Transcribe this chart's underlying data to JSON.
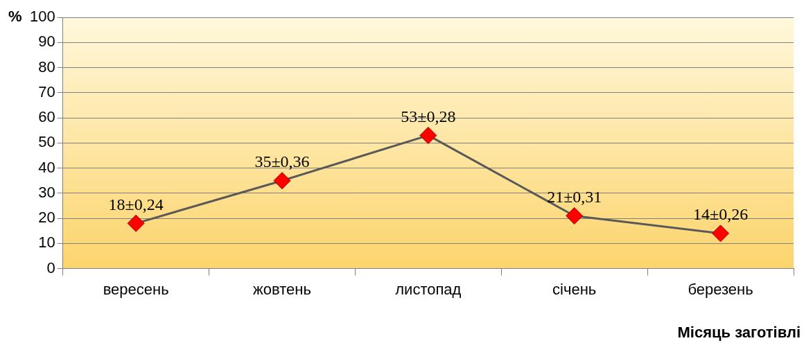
{
  "chart_data": {
    "type": "line",
    "xlabel": "Місяць заготівлі",
    "ylabel": "%",
    "categories": [
      "вересень",
      "жовтень",
      "листопад",
      "січень",
      "березень"
    ],
    "values": [
      18,
      35,
      53,
      21,
      14
    ],
    "value_labels": [
      "18±0,24",
      "35±0,36",
      "53±0,28",
      "21±0,31",
      "14±0,26"
    ],
    "color": "#595959",
    "marker": "diamond",
    "line_style": "solid",
    "ylim": [
      0,
      100
    ],
    "yticks": [
      0,
      10,
      20,
      30,
      40,
      50,
      60,
      70,
      80,
      90,
      100
    ],
    "grid": "y",
    "legend": false
  }
}
